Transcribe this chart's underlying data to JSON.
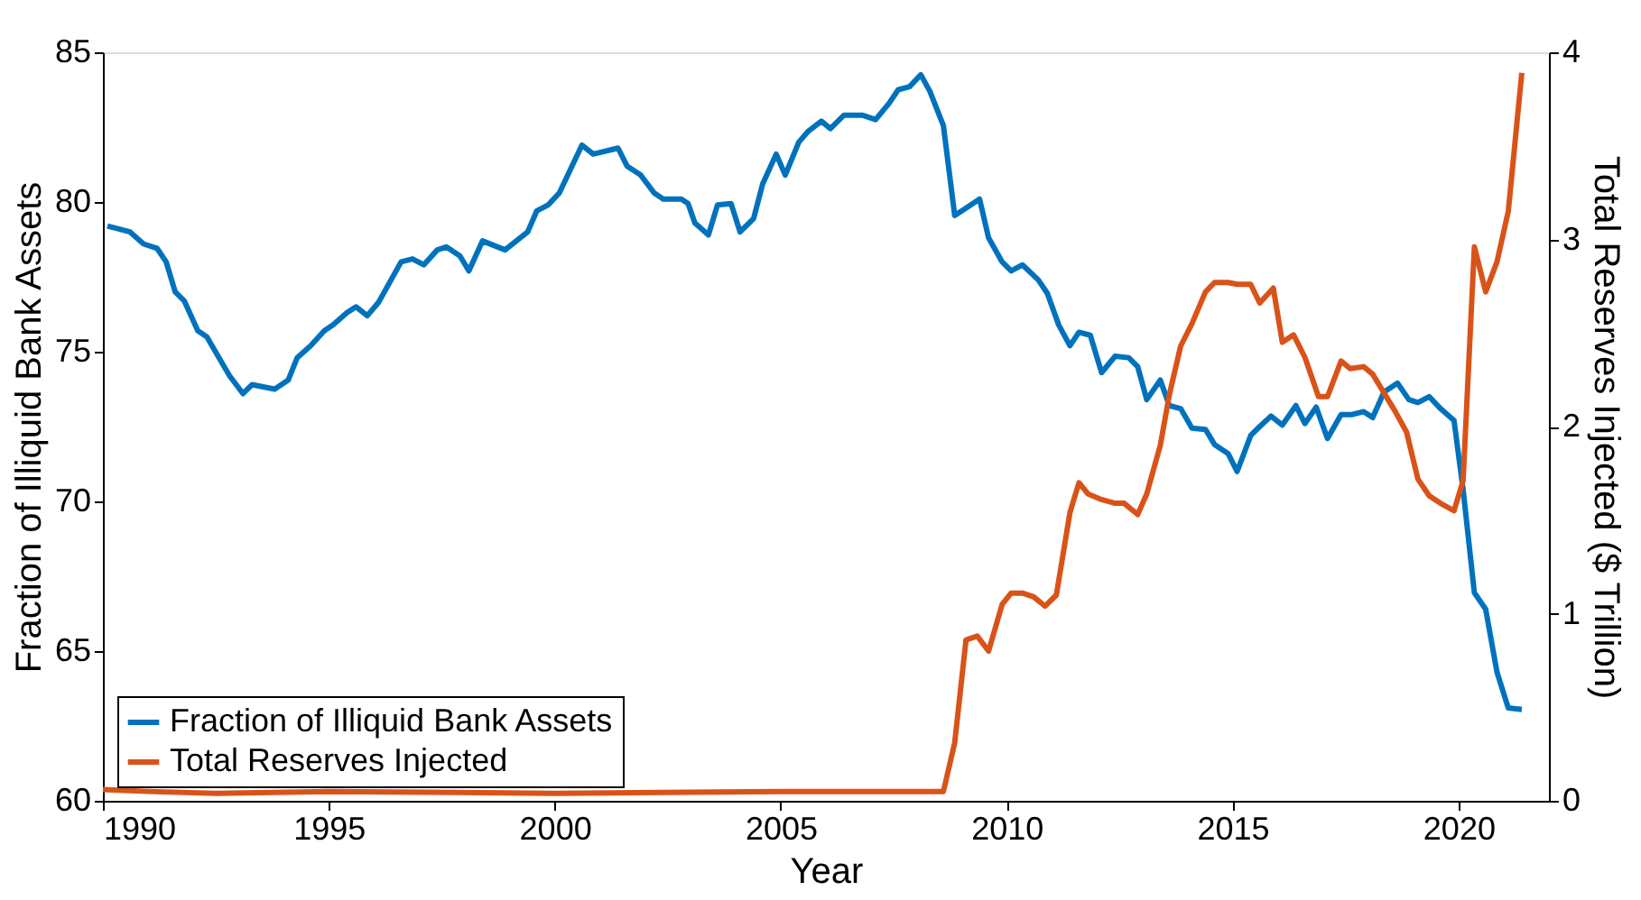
{
  "chart_data": {
    "type": "line",
    "xlabel": "Year",
    "ylabel": "Fraction of Illiquid Bank Assets",
    "y2label": "Total Reserves Injected ($ Trillion)",
    "xlim": [
      1990,
      2022
    ],
    "xticks": [
      1990,
      1995,
      2000,
      2005,
      2010,
      2015,
      2020
    ],
    "ylim": [
      60,
      85
    ],
    "yticks": [
      60,
      65,
      70,
      75,
      80,
      85
    ],
    "y2lim": [
      0,
      4
    ],
    "y2ticks": [
      0,
      1,
      2,
      3,
      4
    ],
    "grid": false,
    "legend": "bottom left",
    "line_style": "solid",
    "marker": "none",
    "series": [
      {
        "name": "Fraction of Illiquid Bank Assets",
        "color": "#0072bd",
        "x": [
          1990.1,
          1990.6,
          1990.9,
          1991.2,
          1991.4,
          1991.6,
          1991.8,
          1992.1,
          1992.3,
          1992.8,
          1993.1,
          1993.3,
          1993.8,
          1994.1,
          1994.3,
          1994.6,
          1994.9,
          1995.1,
          1995.4,
          1995.6,
          1995.85,
          1996.1,
          1996.6,
          1996.85,
          1997.1,
          1997.4,
          1997.6,
          1997.9,
          1998.1,
          1998.4,
          1998.9,
          1999.4,
          1999.6,
          1999.85,
          2000.1,
          2000.6,
          2000.85,
          2001.4,
          2001.6,
          2001.9,
          2002.2,
          2002.4,
          2002.8,
          2002.95,
          2003.1,
          2003.4,
          2003.6,
          2003.9,
          2004.1,
          2004.4,
          2004.6,
          2004.9,
          2005.1,
          2005.4,
          2005.6,
          2005.9,
          2006.1,
          2006.4,
          2006.8,
          2007.1,
          2007.4,
          2007.6,
          2007.85,
          2008.1,
          2008.3,
          2008.6,
          2008.85,
          2009.1,
          2009.4,
          2009.6,
          2009.9,
          2010.1,
          2010.35,
          2010.7,
          2010.9,
          2011.15,
          2011.4,
          2011.6,
          2011.85,
          2012.1,
          2012.4,
          2012.7,
          2012.9,
          2013.1,
          2013.4,
          2013.6,
          2013.85,
          2014.1,
          2014.4,
          2014.6,
          2014.9,
          2015.1,
          2015.4,
          2015.6,
          2015.85,
          2016.1,
          2016.4,
          2016.6,
          2016.85,
          2017.1,
          2017.4,
          2017.65,
          2017.9,
          2018.1,
          2018.35,
          2018.65,
          2018.9,
          2019.1,
          2019.35,
          2019.6,
          2019.9,
          2020.1,
          2020.35,
          2020.6,
          2020.85,
          2021.1,
          2021.4
        ],
        "values": [
          79.2,
          79.0,
          78.6,
          78.45,
          78.0,
          77.0,
          76.7,
          75.7,
          75.5,
          74.2,
          73.6,
          73.9,
          73.75,
          74.05,
          74.8,
          75.2,
          75.7,
          75.9,
          76.3,
          76.5,
          76.2,
          76.65,
          78.0,
          78.1,
          77.9,
          78.4,
          78.5,
          78.2,
          77.7,
          78.7,
          78.4,
          79.0,
          79.7,
          79.9,
          80.3,
          81.9,
          81.6,
          81.8,
          81.2,
          80.9,
          80.3,
          80.1,
          80.1,
          79.95,
          79.3,
          78.9,
          79.9,
          79.95,
          79.0,
          79.45,
          80.6,
          81.6,
          80.9,
          82.0,
          82.35,
          82.7,
          82.45,
          82.9,
          82.9,
          82.75,
          83.3,
          83.75,
          83.85,
          84.25,
          83.7,
          82.55,
          79.55,
          79.8,
          80.1,
          78.8,
          78.0,
          77.7,
          77.9,
          77.4,
          76.95,
          75.9,
          75.2,
          75.65,
          75.55,
          74.3,
          74.85,
          74.8,
          74.5,
          73.4,
          74.05,
          73.2,
          73.1,
          72.45,
          72.4,
          71.9,
          71.6,
          71.0,
          72.2,
          72.5,
          72.85,
          72.55,
          73.2,
          72.6,
          73.15,
          72.1,
          72.9,
          72.9,
          73.0,
          72.8,
          73.65,
          73.95,
          73.4,
          73.3,
          73.5,
          73.1,
          72.7,
          70.4,
          66.95,
          66.4,
          64.3,
          63.1,
          63.05
        ]
      },
      {
        "name": "Total Reserves Injected",
        "color": "#d95319",
        "axis": "y2",
        "x": [
          1990.0,
          1991.0,
          1992.5,
          1995.0,
          2000.0,
          2005.0,
          2008.6,
          2008.85,
          2009.1,
          2009.35,
          2009.6,
          2009.9,
          2010.1,
          2010.35,
          2010.6,
          2010.85,
          2011.1,
          2011.4,
          2011.6,
          2011.8,
          2012.1,
          2012.4,
          2012.6,
          2012.9,
          2013.1,
          2013.4,
          2013.6,
          2013.85,
          2014.1,
          2014.4,
          2014.6,
          2014.9,
          2015.1,
          2015.4,
          2015.6,
          2015.9,
          2016.1,
          2016.35,
          2016.6,
          2016.9,
          2017.1,
          2017.4,
          2017.6,
          2017.9,
          2018.1,
          2018.35,
          2018.6,
          2018.85,
          2019.1,
          2019.35,
          2019.6,
          2019.9,
          2020.1,
          2020.35,
          2020.6,
          2020.85,
          2021.1,
          2021.4
        ],
        "values": [
          0.06,
          0.05,
          0.04,
          0.05,
          0.04,
          0.05,
          0.05,
          0.31,
          0.86,
          0.88,
          0.8,
          1.05,
          1.11,
          1.11,
          1.09,
          1.04,
          1.1,
          1.54,
          1.7,
          1.64,
          1.61,
          1.59,
          1.59,
          1.53,
          1.64,
          1.9,
          2.17,
          2.43,
          2.55,
          2.72,
          2.77,
          2.77,
          2.76,
          2.76,
          2.66,
          2.74,
          2.45,
          2.49,
          2.37,
          2.16,
          2.16,
          2.35,
          2.31,
          2.32,
          2.28,
          2.18,
          2.08,
          1.97,
          1.72,
          1.63,
          1.59,
          1.55,
          1.71,
          2.96,
          2.72,
          2.88,
          3.15,
          3.89
        ]
      }
    ]
  }
}
